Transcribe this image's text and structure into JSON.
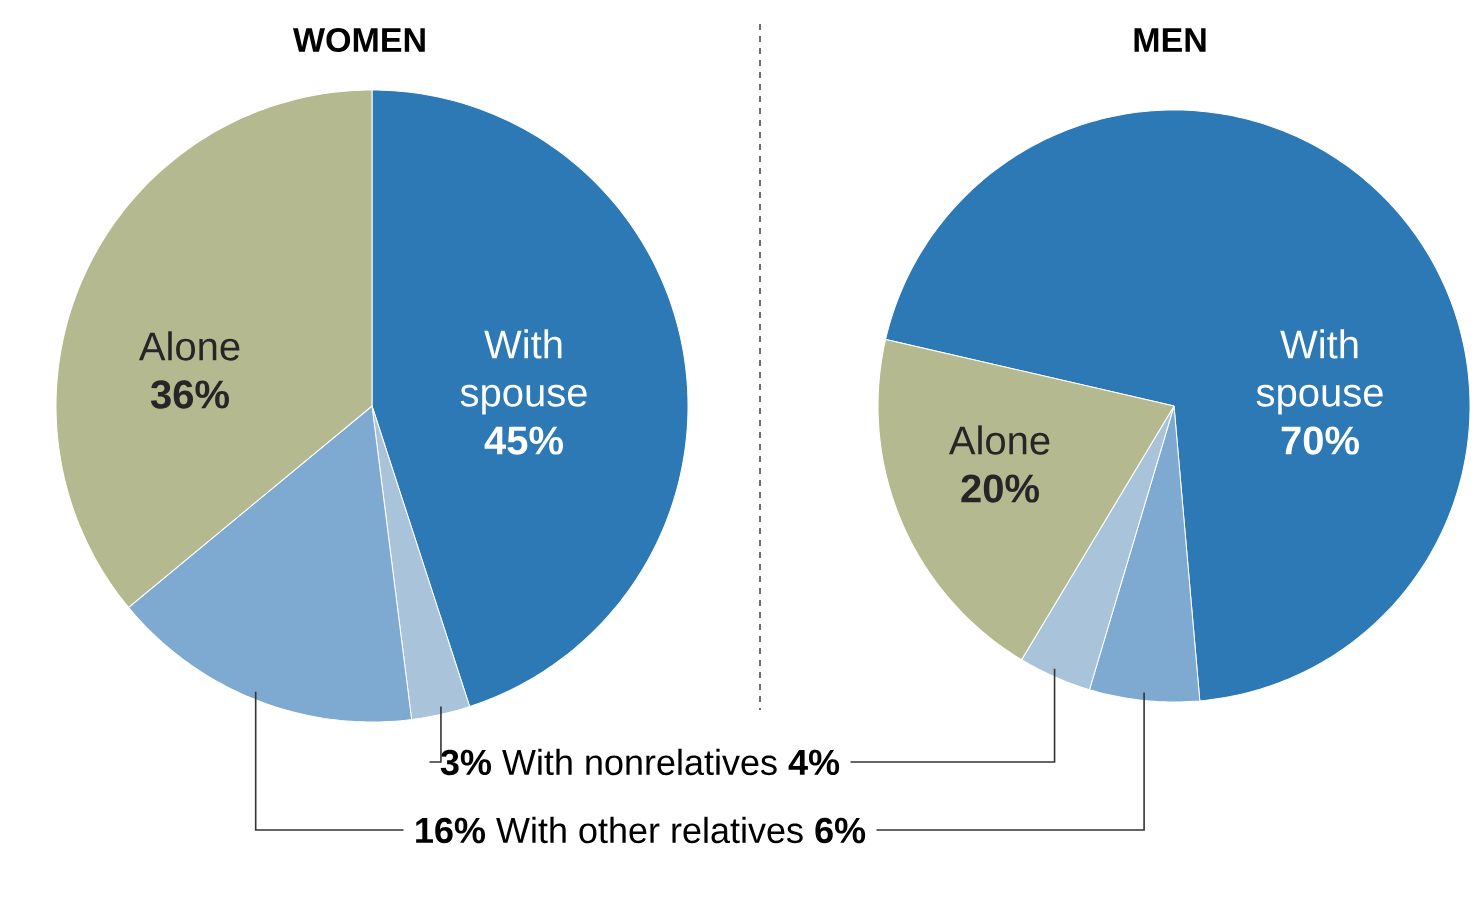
{
  "chart_data": [
    {
      "type": "pie",
      "title": "WOMEN",
      "categories": [
        "With spouse",
        "With nonrelatives",
        "With other relatives",
        "Alone"
      ],
      "values": [
        45,
        3,
        16,
        36
      ],
      "colors": [
        "#2c79b5",
        "#a9c3da",
        "#7ea9d1",
        "#b4b990"
      ],
      "value_labels": [
        "45%",
        "3%",
        "16%",
        "36%"
      ]
    },
    {
      "type": "pie",
      "title": "MEN",
      "categories": [
        "With spouse",
        null,
        null,
        "Alone"
      ],
      "values": [
        70,
        6,
        4,
        20
      ],
      "colors": [
        "#2c79b5",
        "#7ea9d1",
        "#a9c3da",
        "#b4b990"
      ],
      "value_labels": [
        "70%",
        "6%",
        "4%",
        "20%"
      ]
    }
  ]
}
